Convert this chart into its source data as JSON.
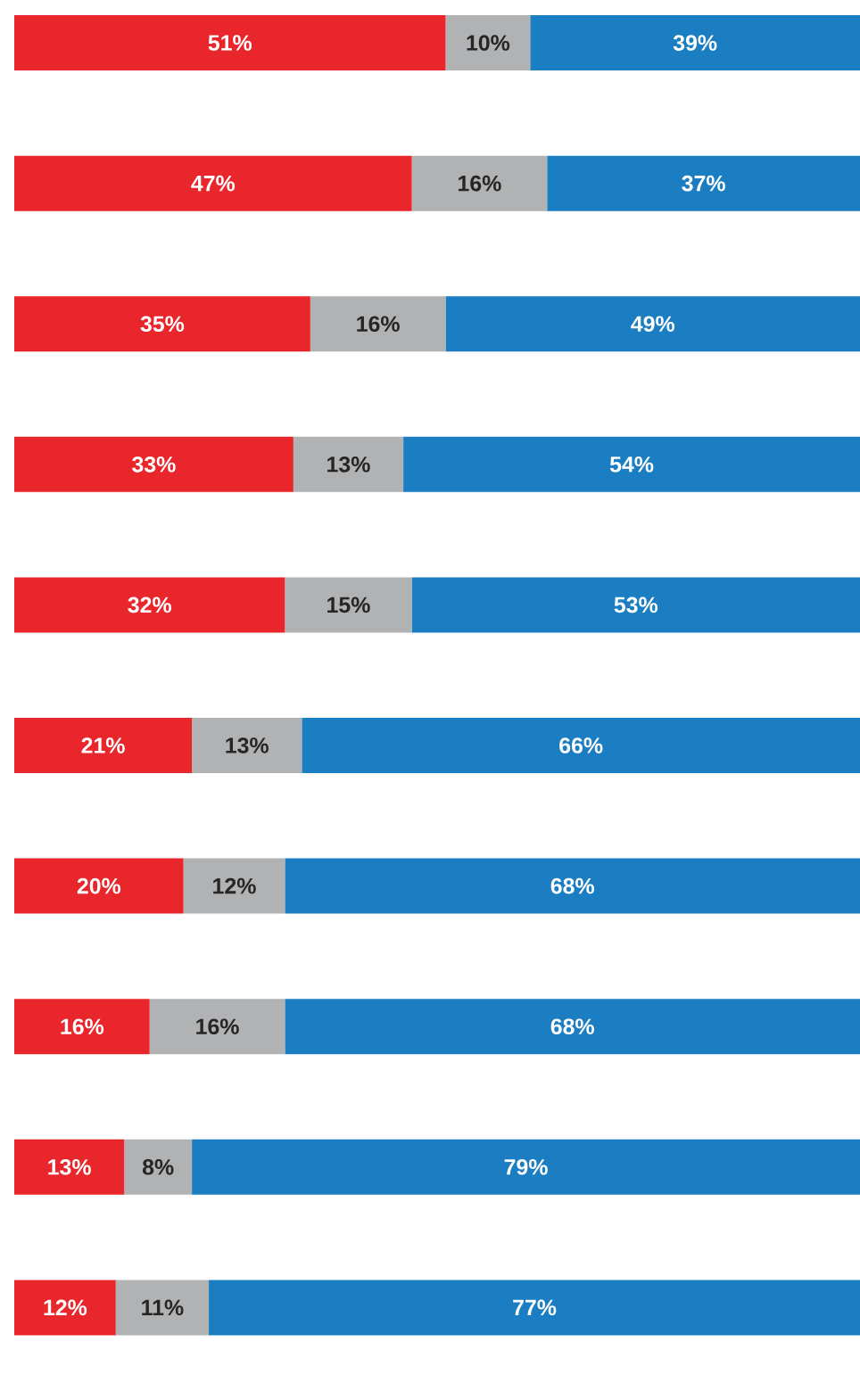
{
  "chart_data": {
    "type": "bar",
    "orientation": "horizontal",
    "stacked": true,
    "categories": [
      null,
      null,
      null,
      null,
      null,
      null,
      null,
      null,
      null,
      null
    ],
    "series": [
      {
        "color": "#e8262b",
        "values": [
          51,
          47,
          35,
          33,
          32,
          21,
          20,
          16,
          13,
          12
        ],
        "value_labels": [
          "51%",
          "47%",
          "35%",
          "33%",
          "32%",
          "21%",
          "20%",
          "16%",
          "13%",
          "12%"
        ]
      },
      {
        "color": "#b1b2b4",
        "values": [
          10,
          16,
          16,
          13,
          15,
          13,
          12,
          16,
          8,
          11
        ],
        "value_labels": [
          "10%",
          "16%",
          "16%",
          "13%",
          "15%",
          "13%",
          "12%",
          "16%",
          "8%",
          "11%"
        ]
      },
      {
        "color": "#1b7ec2",
        "values": [
          39,
          37,
          49,
          54,
          53,
          66,
          68,
          68,
          79,
          77
        ],
        "value_labels": [
          "39%",
          "37%",
          "49%",
          "54%",
          "53%",
          "66%",
          "68%",
          "68%",
          "79%",
          "77%"
        ]
      }
    ]
  }
}
